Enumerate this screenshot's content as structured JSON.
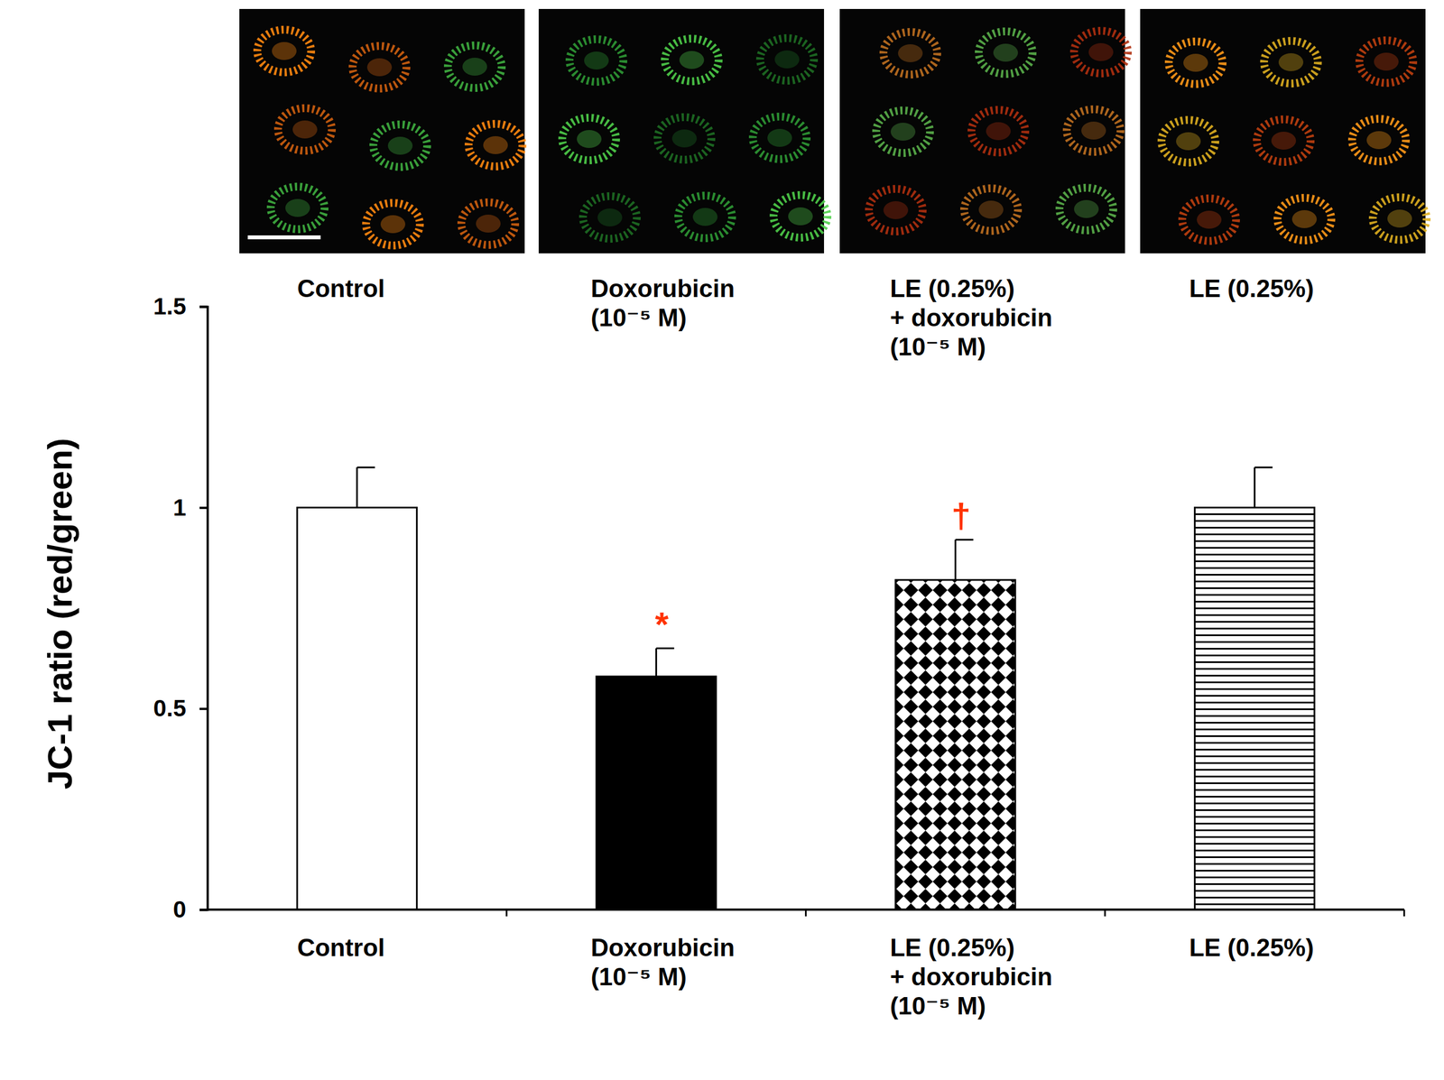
{
  "chart_data": {
    "type": "bar",
    "y_label": "JC-1 ratio (red/green)",
    "categories": [
      "Control",
      "Doxorubicin (10⁻⁵ M)",
      "LE (0.25%) + doxorubicin (10⁻⁵ M)",
      "LE (0.25%)"
    ],
    "image_labels": [
      "Control",
      "Doxorubicin (10⁻⁵ M)",
      "LE (0.25%) + doxorubicin (10⁻⁵ M)",
      "LE (0.25%)"
    ],
    "values": [
      1.0,
      0.58,
      0.82,
      1.0
    ],
    "errors": [
      0.1,
      0.07,
      0.1,
      0.1
    ],
    "colors": [
      "#ffffff",
      "#000000",
      "#ffffff",
      "#ffffff"
    ],
    "ylim": [
      0,
      1.5
    ],
    "yticks": [
      0,
      0.5,
      1,
      1.5
    ],
    "annotations": [
      {
        "text": "*",
        "index": 1,
        "color": "#ff3300"
      },
      {
        "text": "†",
        "index": 2,
        "color": "#ff3300"
      }
    ]
  }
}
